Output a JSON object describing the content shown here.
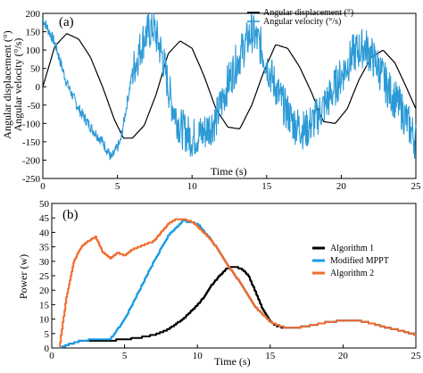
{
  "chart_data": [
    {
      "panel": "(a)",
      "type": "line",
      "xlabel": "Time (s)",
      "ylabel_left_1": "Angular displacement (°)",
      "ylabel_left_2": "Angular velocity (°/s)",
      "xlim": [
        0,
        25
      ],
      "ylim": [
        -250,
        200
      ],
      "xticks": [
        "0",
        "5",
        "10",
        "15",
        "20",
        "25"
      ],
      "yticks": [
        "-250",
        "-200",
        "-150",
        "-100",
        "-50",
        "0",
        "50",
        "100",
        "150",
        "200"
      ],
      "legend_position": "top-right",
      "series": [
        {
          "name": "Angular displacement (°)",
          "color": "#000000",
          "x": [
            0,
            0.8,
            1.6,
            2.4,
            3.2,
            4.0,
            4.8,
            5.4,
            6.0,
            6.8,
            7.6,
            8.4,
            9.2,
            10.0,
            10.8,
            11.6,
            12.4,
            13.2,
            14.0,
            14.8,
            15.6,
            16.4,
            17.2,
            18.0,
            18.8,
            19.6,
            20.4,
            21.2,
            22.0,
            22.8,
            23.6,
            24.4,
            25.0
          ],
          "y": [
            0,
            110,
            145,
            130,
            80,
            0,
            -90,
            -140,
            -140,
            -105,
            -20,
            90,
            125,
            105,
            30,
            -60,
            -110,
            -115,
            -50,
            40,
            115,
            105,
            55,
            -15,
            -95,
            -100,
            -60,
            20,
            80,
            100,
            65,
            -5,
            -60
          ]
        },
        {
          "name": "Angular velocity (°/s)",
          "color": "#2c9ad6",
          "noisy": true,
          "x": [
            0,
            0.8,
            1.6,
            2.4,
            3.2,
            4.0,
            4.6,
            5.2,
            6.0,
            6.8,
            7.4,
            8.0,
            8.6,
            9.2,
            10.0,
            10.8,
            11.6,
            12.4,
            13.2,
            14.0,
            14.6,
            15.2,
            16.0,
            16.8,
            17.6,
            18.4,
            19.2,
            20.0,
            20.8,
            21.6,
            22.4,
            23.2,
            24.0,
            24.6,
            25.0
          ],
          "y": [
            185,
            120,
            10,
            -60,
            -110,
            -150,
            -195,
            -150,
            40,
            135,
            165,
            85,
            -40,
            -110,
            -140,
            -125,
            -90,
            10,
            85,
            150,
            110,
            40,
            -40,
            -100,
            -120,
            -80,
            -30,
            30,
            90,
            110,
            60,
            -10,
            -60,
            -110,
            -150
          ]
        }
      ]
    },
    {
      "panel": "(b)",
      "type": "line",
      "xlabel": "Time (s)",
      "ylabel": "Power (w)",
      "xlim": [
        0,
        25
      ],
      "ylim": [
        0,
        50
      ],
      "xticks": [
        "0",
        "5",
        "10",
        "15",
        "20",
        "25"
      ],
      "yticks": [
        "0",
        "5",
        "10",
        "15",
        "20",
        "25",
        "30",
        "35",
        "40",
        "45",
        "50"
      ],
      "legend_position": "right",
      "series": [
        {
          "name": "Algorithm 1",
          "color": "#000000",
          "x": [
            0.5,
            1,
            2,
            3,
            4,
            5,
            6,
            7,
            8,
            9,
            10,
            10.5,
            11,
            11.5,
            12,
            12.5,
            13,
            13.5,
            14,
            14.5,
            15,
            15.5,
            16,
            17,
            18,
            19,
            20,
            21,
            22,
            23,
            24,
            25
          ],
          "y": [
            0,
            1,
            2.5,
            2.5,
            2.6,
            3.0,
            3.6,
            4.5,
            6.5,
            10,
            15,
            18,
            22,
            25,
            27.5,
            28,
            27.5,
            25,
            19,
            13,
            9,
            7.5,
            7,
            7.2,
            8,
            9,
            9.5,
            9.5,
            8.5,
            7,
            6,
            4.5
          ]
        },
        {
          "name": "Modified MPPT",
          "color": "#1a9ce6",
          "x": [
            0.5,
            1,
            2,
            3,
            4,
            5,
            6,
            7,
            8,
            9,
            10,
            11,
            12,
            13,
            14,
            15,
            16,
            17,
            18,
            19,
            20,
            21,
            22,
            23,
            24,
            25
          ],
          "y": [
            0,
            1,
            2.5,
            3,
            3,
            10,
            20,
            30,
            39,
            44,
            43,
            37,
            29,
            22,
            14,
            9,
            7,
            7.2,
            8,
            9,
            9.5,
            9.5,
            8.5,
            7,
            6,
            4.5
          ]
        },
        {
          "name": "Algorithm 2",
          "color": "#f26b2d",
          "x": [
            0.5,
            1,
            1.5,
            2,
            2.5,
            3,
            3.5,
            4,
            4.5,
            5,
            5.5,
            6,
            7,
            8,
            8.5,
            9,
            9.5,
            10,
            11,
            12,
            13,
            14,
            15,
            16,
            17,
            18,
            19,
            20,
            21,
            22,
            23,
            24,
            25
          ],
          "y": [
            0,
            18,
            30,
            35,
            37,
            38.5,
            33,
            31,
            33,
            32,
            34,
            35,
            37,
            43,
            44.5,
            44.5,
            44,
            42,
            37,
            29,
            22,
            14,
            9,
            7,
            7.2,
            8,
            9,
            9.5,
            9.5,
            8.5,
            7,
            6,
            4.5
          ]
        }
      ]
    }
  ]
}
